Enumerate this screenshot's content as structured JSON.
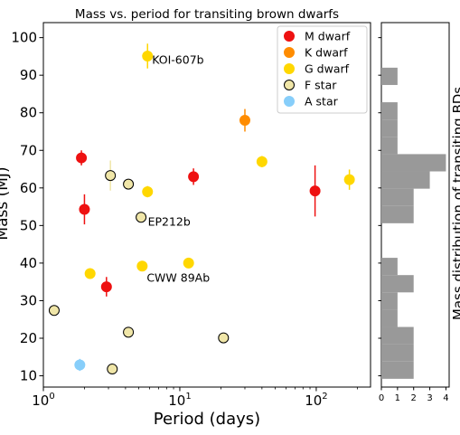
{
  "chart_data": [
    {
      "type": "scatter",
      "title": "Mass vs. period for transiting brown dwarfs",
      "xlabel": "Period (days)",
      "ylabel": "Mass (MJ)",
      "xscale": "log",
      "xlim": [
        1,
        250
      ],
      "ylim": [
        7,
        104
      ],
      "x_ticks": [
        {
          "value": 1,
          "label": "10^0"
        },
        {
          "value": 10,
          "label": "10^1"
        },
        {
          "value": 100,
          "label": "10^2"
        }
      ],
      "y_ticks": [
        10,
        20,
        30,
        40,
        50,
        60,
        70,
        80,
        90,
        100
      ],
      "legend_position": "top-right",
      "series": [
        {
          "name": "M dwarf",
          "color": "#ee1111",
          "edge": "#ee1111",
          "points": [
            {
              "x": 1.9,
              "y": 68,
              "err": 2
            },
            {
              "x": 2.0,
              "y": 54.3,
              "err": 4
            },
            {
              "x": 2.9,
              "y": 33.7,
              "err": 2.6
            },
            {
              "x": 12.6,
              "y": 63,
              "err": 2.2
            },
            {
              "x": 98,
              "y": 59.2,
              "err": 6.8
            }
          ]
        },
        {
          "name": "K dwarf",
          "color": "#ff8c00",
          "edge": "#ff8c00",
          "points": [
            {
              "x": 30,
              "y": 78,
              "err": 3
            }
          ]
        },
        {
          "name": "G dwarf",
          "color": "#ffd700",
          "edge": "#ffd700",
          "points": [
            {
              "x": 5.8,
              "y": 95.1,
              "err": 3.3
            },
            {
              "x": 2.2,
              "y": 37.2,
              "err": 1
            },
            {
              "x": 5.8,
              "y": 59,
              "err": 1.5
            },
            {
              "x": 5.3,
              "y": 39.2,
              "err": 1
            },
            {
              "x": 11.6,
              "y": 40,
              "err": 1
            },
            {
              "x": 40,
              "y": 67,
              "err": 1.5
            },
            {
              "x": 175,
              "y": 62.2,
              "err": 2.7
            }
          ]
        },
        {
          "name": "F star",
          "color": "#f0e6a8",
          "edge": "#000000",
          "points": [
            {
              "x": 1.2,
              "y": 27.4,
              "err": 0.8
            },
            {
              "x": 3.1,
              "y": 63.3,
              "err": 4
            },
            {
              "x": 4.2,
              "y": 61,
              "err": 1
            },
            {
              "x": 5.2,
              "y": 52.2,
              "err": 1
            },
            {
              "x": 4.2,
              "y": 21.6,
              "err": 0.8
            },
            {
              "x": 3.2,
              "y": 11.8,
              "err": 0.6
            },
            {
              "x": 20.9,
              "y": 20.1,
              "err": 0.7
            }
          ]
        },
        {
          "name": "A star",
          "color": "#87cefa",
          "edge": "#87cefa",
          "points": [
            {
              "x": 1.85,
              "y": 12.9,
              "err": 1.6
            }
          ]
        }
      ],
      "annotations": [
        {
          "text": "KOI-607b",
          "x": 5.8,
          "y": 93
        },
        {
          "text": "EP212b",
          "x": 5.4,
          "y": 50
        },
        {
          "text": "CWW 89Ab",
          "x": 5.3,
          "y": 35
        }
      ]
    },
    {
      "type": "bar",
      "orientation": "horizontal",
      "ylabel": "Mass distribution of transiting BDs",
      "xlim": [
        0,
        4.2
      ],
      "ylim": [
        7,
        104
      ],
      "x_ticks": [
        0,
        1,
        2,
        3,
        4
      ],
      "color": "#999999",
      "bins": [
        {
          "from": 9.2,
          "to": 13.8,
          "count": 2
        },
        {
          "from": 13.8,
          "to": 18.4,
          "count": 2
        },
        {
          "from": 18.4,
          "to": 23.0,
          "count": 2
        },
        {
          "from": 23.0,
          "to": 27.6,
          "count": 1
        },
        {
          "from": 27.6,
          "to": 32.2,
          "count": 1
        },
        {
          "from": 32.2,
          "to": 36.8,
          "count": 2
        },
        {
          "from": 36.8,
          "to": 41.4,
          "count": 1
        },
        {
          "from": 41.4,
          "to": 46.0,
          "count": 0
        },
        {
          "from": 46.0,
          "to": 50.6,
          "count": 0
        },
        {
          "from": 50.6,
          "to": 55.2,
          "count": 2
        },
        {
          "from": 55.2,
          "to": 59.8,
          "count": 2
        },
        {
          "from": 59.8,
          "to": 64.4,
          "count": 3
        },
        {
          "from": 64.4,
          "to": 69.0,
          "count": 4
        },
        {
          "from": 69.0,
          "to": 73.6,
          "count": 1
        },
        {
          "from": 73.6,
          "to": 78.2,
          "count": 1
        },
        {
          "from": 78.2,
          "to": 82.8,
          "count": 1
        },
        {
          "from": 82.8,
          "to": 87.4,
          "count": 0
        },
        {
          "from": 87.4,
          "to": 92.0,
          "count": 1
        }
      ]
    }
  ]
}
